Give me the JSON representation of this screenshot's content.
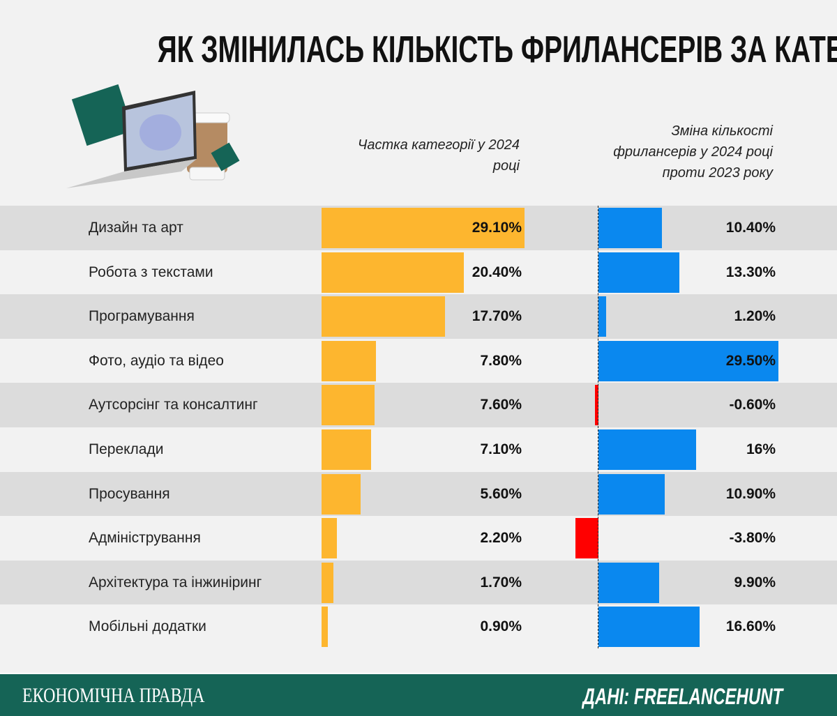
{
  "chart_data": {
    "type": "bar",
    "title": "ЯК ЗМІНИЛАСЬ КІЛЬКІСТЬ ФРИЛАНСЕРІВ ЗА КАТЕГОРІЯМИ",
    "categories": [
      "Дизайн та арт",
      "Робота з текстами",
      "Програмування",
      "Фото, аудіо та відео",
      "Аутсорсінг та консалтинг",
      "Переклади",
      "Просування",
      "Адміністрування",
      "Архітектура та інжиніринг",
      "Мобільні додатки"
    ],
    "series": [
      {
        "name": "Частка категорії у 2024 році",
        "values": [
          29.1,
          20.4,
          17.7,
          7.8,
          7.6,
          7.1,
          5.6,
          2.2,
          1.7,
          0.9
        ],
        "labels": [
          "29.10%",
          "20.40%",
          "17.70%",
          "7.80%",
          "7.60%",
          "7.10%",
          "5.60%",
          "2.20%",
          "1.70%",
          "0.90%"
        ],
        "color": "#fdb62f"
      },
      {
        "name": "Зміна кількості фрилансерів у 2024 році проти 2023 року",
        "values": [
          10.4,
          13.3,
          1.2,
          29.5,
          -0.6,
          16,
          10.9,
          -3.8,
          9.9,
          16.6
        ],
        "labels": [
          "10.40%",
          "13.30%",
          "1.20%",
          "29.50%",
          "-0.60%",
          "16%",
          "10.90%",
          "-3.80%",
          "9.90%",
          "16.60%"
        ],
        "color": "#0a88ef",
        "negative_color": "#ff0000"
      }
    ]
  },
  "footer": {
    "brand": "ЕКОНОМІЧНА ПРАВДА",
    "source": "ДАНІ: FREELANCEHUNT"
  },
  "colors": {
    "footer": "#156456",
    "row_dark": "#dcdcdc",
    "row_light": "#f2f2f2"
  }
}
